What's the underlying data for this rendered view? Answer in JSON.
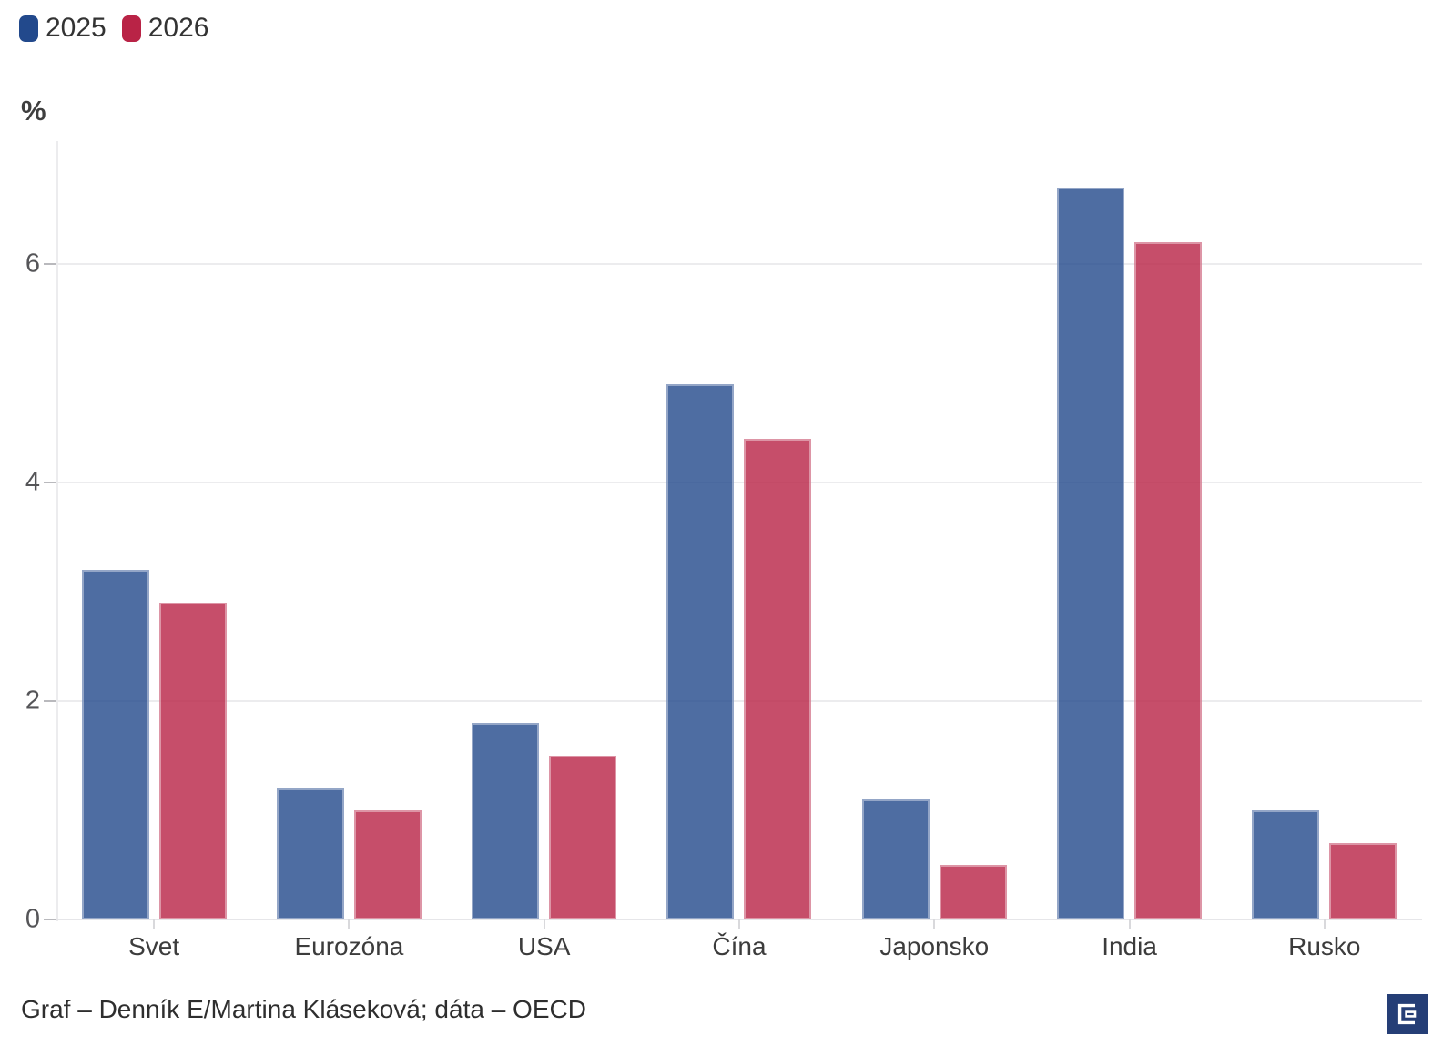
{
  "legend": {
    "items": [
      {
        "label": "2025",
        "color": "#22498C"
      },
      {
        "label": "2026",
        "color": "#B92346"
      }
    ]
  },
  "chart_data": {
    "type": "bar",
    "title": "",
    "ylabel": "%",
    "xlabel": "",
    "categories": [
      "Svet",
      "Eurozóna",
      "USA",
      "Čína",
      "Japonsko",
      "India",
      "Rusko"
    ],
    "series": [
      {
        "name": "2025",
        "color": "#22498C",
        "bar_opacity": 0.8,
        "values": [
          3.2,
          1.2,
          1.8,
          4.9,
          1.1,
          6.7,
          1.0
        ]
      },
      {
        "name": "2026",
        "color": "#B92346",
        "bar_opacity": 0.8,
        "values": [
          2.9,
          1.0,
          1.5,
          4.4,
          0.5,
          6.2,
          0.7
        ]
      }
    ],
    "yticks": [
      0,
      2,
      4,
      6
    ],
    "ylim": [
      0,
      7.125
    ],
    "grid": "horizontal",
    "legend_position": "top-left"
  },
  "footer": {
    "credit": "Graf – Denník E/Martina Kláseková; dáta – OECD",
    "logo": "dennik-e-logo"
  },
  "colors": {
    "bar_2025": "#4E6DA3",
    "bar_2026": "#C74F6B",
    "gridline": "#ECECEE",
    "axis_text": "#555558",
    "logo_navy": "#253E76"
  }
}
